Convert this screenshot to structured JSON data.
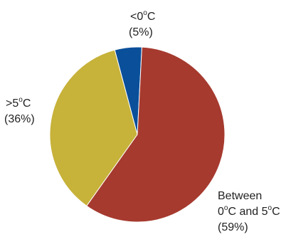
{
  "chart_data": {
    "type": "pie",
    "slices": [
      {
        "label_pre": "<0",
        "label_deg": "o",
        "label_post": "C",
        "pct_text": "(5%)",
        "value": 5,
        "color": "#0a4f9a"
      },
      {
        "label_pre": "Between",
        "label_line2_pre": "0",
        "label_deg": "o",
        "label_line2_mid": "C and 5",
        "label_deg2": "o",
        "label_line2_post": "C",
        "pct_text": "(59%)",
        "value": 59,
        "color": "#a63a2f"
      },
      {
        "label_pre": ">5",
        "label_deg": "o",
        "label_post": "C",
        "pct_text": "(36%)",
        "value": 36,
        "color": "#c7b23a"
      }
    ],
    "start_angle_deg": -15,
    "direction": "clockwise"
  }
}
